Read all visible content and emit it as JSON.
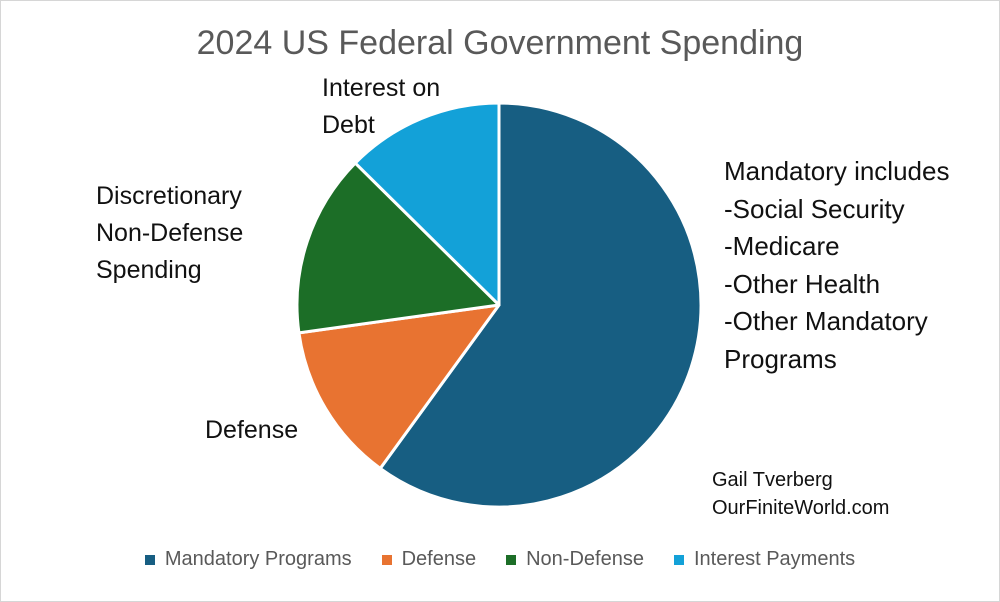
{
  "chart_data": {
    "type": "pie",
    "title": "2024 US Federal Government Spending",
    "slices": [
      {
        "label": "Mandatory Programs",
        "value": 60.0,
        "color": "#175e82"
      },
      {
        "label": "Defense",
        "value": 12.8,
        "color": "#e87331"
      },
      {
        "label": "Non-Defense",
        "value": 14.6,
        "color": "#1c6e27"
      },
      {
        "label": "Interest Payments",
        "value": 12.6,
        "color": "#13a1d8"
      }
    ],
    "legend_position": "bottom",
    "annotations": {
      "interest": [
        "Interest on",
        "Debt"
      ],
      "nondefense": [
        "Discretionary",
        "Non-Defense",
        "Spending"
      ],
      "defense": [
        "Defense"
      ],
      "mandatory": [
        "Mandatory includes",
        "-Social Security",
        "-Medicare",
        "-Other Health",
        "-Other Mandatory",
        "Programs"
      ],
      "credit": [
        "Gail Tverberg",
        "OurFiniteWorld.com"
      ]
    }
  }
}
